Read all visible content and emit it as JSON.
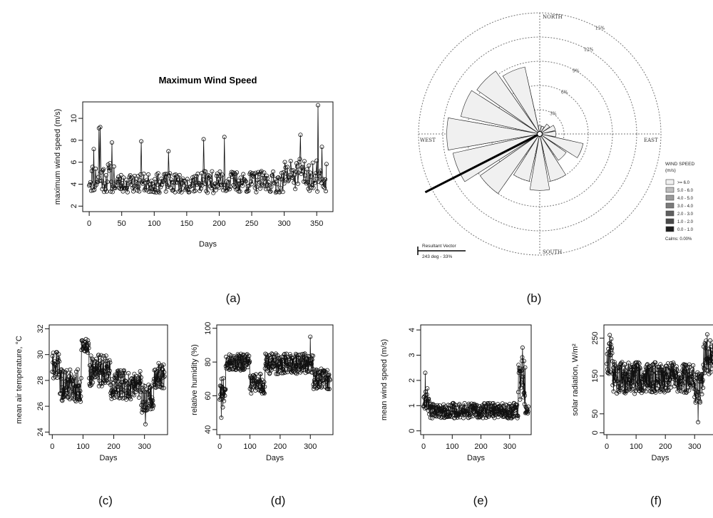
{
  "chart_data": [
    {
      "id": "a",
      "panel_label": "(a)",
      "type": "line",
      "title": "Maximum Wind Speed",
      "xlabel": "Days",
      "ylabel": "maximum wind speed (m/s)",
      "xlim": [
        -10,
        375
      ],
      "ylim": [
        1.5,
        11.5
      ],
      "xticks": [
        0,
        50,
        100,
        150,
        200,
        250,
        300,
        350
      ],
      "yticks": [
        2,
        4,
        6,
        8,
        10
      ],
      "markers": "open-circle",
      "segments": [
        {
          "x": [
            0,
            40
          ],
          "base": 4.6,
          "amp": 1.4,
          "seed": 11
        },
        {
          "x": [
            40,
            150
          ],
          "base": 4.1,
          "amp": 0.9,
          "seed": 23
        },
        {
          "x": [
            150,
            300
          ],
          "base": 4.2,
          "amp": 1.0,
          "seed": 37
        },
        {
          "x": [
            300,
            365
          ],
          "base": 4.8,
          "amp": 1.5,
          "seed": 51
        }
      ],
      "peaks": [
        [
          7,
          7.2
        ],
        [
          15,
          9.1
        ],
        [
          17,
          9.2
        ],
        [
          35,
          7.8
        ],
        [
          80,
          7.9
        ],
        [
          122,
          7.0
        ],
        [
          176,
          8.1
        ],
        [
          208,
          8.3
        ],
        [
          325,
          8.5
        ],
        [
          352,
          11.2
        ],
        [
          358,
          7.4
        ]
      ]
    },
    {
      "id": "b",
      "panel_label": "(b)",
      "type": "windrose",
      "directions": {
        "n": "NORTH",
        "e": "EAST",
        "s": "SOUTH",
        "w": "WEST"
      },
      "rings": [
        "3%",
        "6%",
        "9%",
        "12%",
        "15%"
      ],
      "ring_max": 15,
      "petal_directions_deg": [
        0,
        22.5,
        45,
        67.5,
        90,
        112.5,
        135,
        157.5,
        180,
        202.5,
        225,
        247.5,
        270,
        292.5,
        315,
        337.5
      ],
      "petal_totals_pct": [
        1,
        1,
        1.5,
        2,
        2,
        5.5,
        4,
        6,
        7,
        6,
        9,
        11,
        11.5,
        10,
        9.5,
        8.5
      ],
      "speed_bins": [
        ">= 6.0",
        "5.0 - 6.0",
        "4.0 - 5.0",
        "3.0 - 4.0",
        "2.0 - 3.0",
        "1.0 - 2.0",
        "0.0 - 1.0"
      ],
      "bin_colors": [
        "#f0f0f0",
        "#bdbdbd",
        "#9a9a9a",
        "#7a7a7a",
        "#5f5f5f",
        "#4a4a4a",
        "#1e1e1e"
      ],
      "legend_title": "WIND SPEED",
      "legend_unit": "(m/s)",
      "calms": "Calms: 0.00%",
      "resultant_vector_label": "Resultant Vector",
      "resultant_vector_value": "243 deg - 33%",
      "resultant_deg": 243,
      "resultant_pct": 33
    },
    {
      "id": "c",
      "panel_label": "(c)",
      "type": "line",
      "title": "",
      "xlabel": "Days",
      "ylabel": "mean air temperature, °C",
      "xlim": [
        -10,
        375
      ],
      "ylim": [
        23.8,
        32.3
      ],
      "xticks": [
        0,
        100,
        200,
        300
      ],
      "yticks": [
        24,
        26,
        28,
        30,
        32
      ],
      "markers": "open-circle",
      "segments": [
        {
          "x": [
            0,
            25
          ],
          "base": 29.2,
          "amp": 1.1,
          "seed": 61
        },
        {
          "x": [
            25,
            95
          ],
          "base": 27.6,
          "amp": 1.3,
          "seed": 62
        },
        {
          "x": [
            95,
            120
          ],
          "base": 30.6,
          "amp": 0.5,
          "seed": 63
        },
        {
          "x": [
            120,
            190
          ],
          "base": 28.8,
          "amp": 1.3,
          "seed": 64
        },
        {
          "x": [
            190,
            290
          ],
          "base": 27.6,
          "amp": 1.2,
          "seed": 65
        },
        {
          "x": [
            290,
            330
          ],
          "base": 26.6,
          "amp": 1.1,
          "seed": 66
        },
        {
          "x": [
            330,
            365
          ],
          "base": 28.4,
          "amp": 1.0,
          "seed": 67
        }
      ],
      "peaks": [
        [
          110,
          31.2
        ],
        [
          303,
          24.6
        ]
      ]
    },
    {
      "id": "d",
      "panel_label": "(d)",
      "type": "line",
      "title": "",
      "xlabel": "Days",
      "ylabel": "relative humidity (%)",
      "xlim": [
        -10,
        375
      ],
      "ylim": [
        37,
        102
      ],
      "xticks": [
        0,
        100,
        200,
        300
      ],
      "yticks": [
        40,
        60,
        80,
        100
      ],
      "markers": "open-circle",
      "segments": [
        {
          "x": [
            0,
            20
          ],
          "base": 62,
          "amp": 9,
          "seed": 71
        },
        {
          "x": [
            20,
            100
          ],
          "base": 80,
          "amp": 5,
          "seed": 72
        },
        {
          "x": [
            100,
            150
          ],
          "base": 67,
          "amp": 6,
          "seed": 73
        },
        {
          "x": [
            150,
            310
          ],
          "base": 79,
          "amp": 6,
          "seed": 74
        },
        {
          "x": [
            310,
            365
          ],
          "base": 70,
          "amp": 7,
          "seed": 75
        }
      ],
      "peaks": [
        [
          5,
          47
        ],
        [
          300,
          95
        ]
      ]
    },
    {
      "id": "e",
      "panel_label": "(e)",
      "type": "line",
      "title": "",
      "xlabel": "Days",
      "ylabel": "mean wind speed (m/s)",
      "xlim": [
        -10,
        375
      ],
      "ylim": [
        -0.15,
        4.2
      ],
      "xticks": [
        0,
        100,
        200,
        300
      ],
      "yticks": [
        0,
        1,
        2,
        3,
        4
      ],
      "markers": "open-circle",
      "segments": [
        {
          "x": [
            0,
            20
          ],
          "base": 1.2,
          "amp": 0.5,
          "seed": 81
        },
        {
          "x": [
            20,
            330
          ],
          "base": 0.8,
          "amp": 0.3,
          "seed": 82
        },
        {
          "x": [
            330,
            355
          ],
          "base": 2.0,
          "amp": 1.0,
          "seed": 83
        },
        {
          "x": [
            355,
            365
          ],
          "base": 0.8,
          "amp": 0.2,
          "seed": 84
        }
      ],
      "peaks": [
        [
          6,
          2.3
        ],
        [
          345,
          3.3
        ]
      ]
    },
    {
      "id": "f",
      "panel_label": "(f)",
      "type": "line",
      "title": "",
      "xlabel": "Days",
      "ylabel": "solar radiation, W/m²",
      "xlim": [
        -10,
        375
      ],
      "ylim": [
        -5,
        285
      ],
      "xticks": [
        0,
        100,
        200,
        300
      ],
      "yticks": [
        0,
        50,
        150,
        250
      ],
      "markers": "open-circle",
      "segments": [
        {
          "x": [
            0,
            20
          ],
          "base": 205,
          "amp": 50,
          "seed": 91
        },
        {
          "x": [
            20,
            300
          ],
          "base": 145,
          "amp": 42,
          "seed": 92
        },
        {
          "x": [
            300,
            330
          ],
          "base": 115,
          "amp": 45,
          "seed": 93
        },
        {
          "x": [
            330,
            365
          ],
          "base": 200,
          "amp": 45,
          "seed": 94
        }
      ],
      "peaks": [
        [
          10,
          258
        ],
        [
          312,
          28
        ],
        [
          343,
          260
        ]
      ]
    }
  ]
}
